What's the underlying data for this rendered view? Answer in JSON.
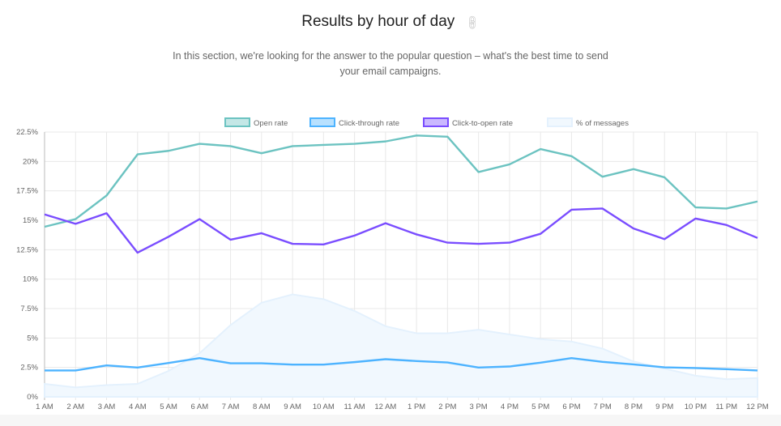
{
  "header": {
    "title": "Results by hour of day",
    "link_icon": "link-icon",
    "description": "In this section, we're looking for the answer to the popular question – what's the best time to send your email campaigns."
  },
  "chart_data": {
    "type": "line",
    "title": "",
    "xlabel": "",
    "ylabel": "",
    "categories": [
      "1 AM",
      "2 AM",
      "3 AM",
      "4 AM",
      "5 AM",
      "6 AM",
      "7 AM",
      "8 AM",
      "9 AM",
      "10 AM",
      "11 AM",
      "12 AM",
      "1 PM",
      "2 PM",
      "3 PM",
      "4 PM",
      "5 PM",
      "6 PM",
      "7 PM",
      "8 PM",
      "9 PM",
      "10 PM",
      "11 PM",
      "12 PM"
    ],
    "ylim": [
      0,
      22.5
    ],
    "yticks": [
      "0%",
      "2.5%",
      "5%",
      "7.5%",
      "10%",
      "12.5%",
      "15%",
      "17.5%",
      "20%",
      "22.5%"
    ],
    "grid": true,
    "legend_position": "top",
    "series": [
      {
        "name": "Open rate",
        "color": "#6cc3c1",
        "fill": false,
        "values": [
          14.45,
          15.1,
          17.1,
          20.6,
          20.9,
          21.5,
          21.3,
          20.7,
          21.3,
          21.4,
          21.5,
          21.7,
          22.2,
          22.1,
          19.1,
          19.75,
          21.05,
          20.45,
          18.7,
          19.35,
          18.65,
          16.1,
          16.0,
          16.6
        ]
      },
      {
        "name": "Click-through rate",
        "color": "#4db3ff",
        "fill": false,
        "values": [
          2.24,
          2.24,
          2.67,
          2.49,
          2.88,
          3.29,
          2.85,
          2.85,
          2.74,
          2.74,
          2.95,
          3.2,
          3.04,
          2.92,
          2.49,
          2.58,
          2.9,
          3.29,
          2.97,
          2.76,
          2.51,
          2.45,
          2.35,
          2.24
        ]
      },
      {
        "name": "Click-to-open rate",
        "color": "#7a4dff",
        "fill": false,
        "values": [
          15.5,
          14.7,
          15.6,
          12.25,
          13.6,
          15.1,
          13.35,
          13.9,
          13.0,
          12.95,
          13.7,
          14.75,
          13.8,
          13.1,
          13.0,
          13.1,
          13.85,
          15.9,
          16.0,
          14.3,
          13.4,
          15.15,
          14.6,
          13.5
        ]
      },
      {
        "name": "% of messages",
        "color": "#e4f1fd",
        "fill": true,
        "values": [
          1.1,
          0.8,
          1.0,
          1.1,
          2.2,
          3.7,
          6.1,
          8.0,
          8.7,
          8.3,
          7.3,
          6.0,
          5.4,
          5.4,
          5.7,
          5.3,
          4.9,
          4.7,
          4.1,
          3.0,
          2.4,
          1.8,
          1.5,
          1.6
        ]
      }
    ]
  }
}
